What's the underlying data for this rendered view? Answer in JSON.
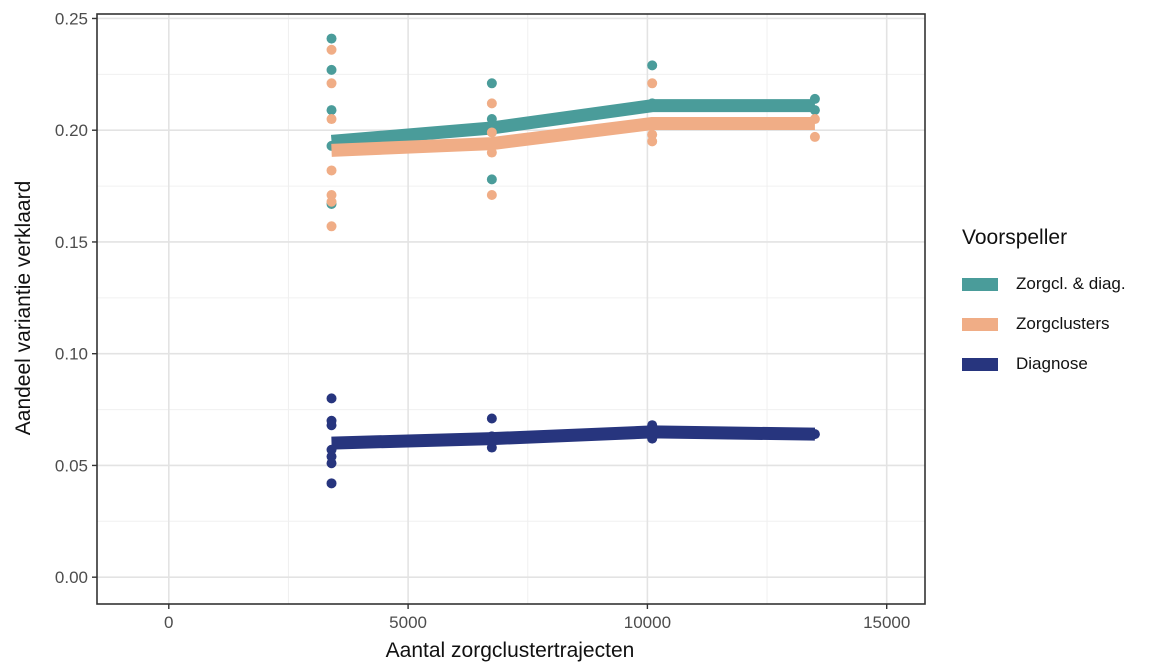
{
  "chart_data": {
    "type": "line",
    "xlabel": "Aantal zorgclustertrajecten",
    "ylabel": "Aandeel variantie verklaard",
    "xlim": [
      -1500,
      15800
    ],
    "ylim": [
      -0.012,
      0.252
    ],
    "x_ticks": [
      0,
      5000,
      10000,
      15000
    ],
    "x_tick_labels": [
      "0",
      "5000",
      "10000",
      "15000"
    ],
    "y_ticks": [
      0.0,
      0.05,
      0.1,
      0.15,
      0.2,
      0.25
    ],
    "y_tick_labels": [
      "0.00",
      "0.05",
      "0.10",
      "0.15",
      "0.20",
      "0.25"
    ],
    "grid": true,
    "legend_title": "Voorspeller",
    "legend_position": "right",
    "series": [
      {
        "name": "Zorgcl. & diag.",
        "color": "#4a9c9a",
        "line": {
          "x": [
            3400,
            6750,
            10100,
            13500
          ],
          "y": [
            0.195,
            0.201,
            0.211,
            0.211
          ]
        },
        "points": {
          "x": [
            3400,
            3400,
            3400,
            3400,
            3400,
            6750,
            6750,
            6750,
            6750,
            10100,
            10100,
            13500,
            13500
          ],
          "y": [
            0.241,
            0.227,
            0.209,
            0.193,
            0.167,
            0.221,
            0.205,
            0.202,
            0.178,
            0.229,
            0.212,
            0.214,
            0.209
          ]
        }
      },
      {
        "name": "Zorgclusters",
        "color": "#f0ad86",
        "line": {
          "x": [
            3400,
            6750,
            10100,
            13500
          ],
          "y": [
            0.191,
            0.194,
            0.203,
            0.203
          ]
        },
        "points": {
          "x": [
            3400,
            3400,
            3400,
            3400,
            3400,
            3400,
            3400,
            6750,
            6750,
            6750,
            6750,
            10100,
            10100,
            10100,
            13500,
            13500
          ],
          "y": [
            0.236,
            0.221,
            0.205,
            0.182,
            0.171,
            0.168,
            0.157,
            0.212,
            0.199,
            0.19,
            0.171,
            0.221,
            0.198,
            0.195,
            0.205,
            0.197
          ]
        }
      },
      {
        "name": "Diagnose",
        "color": "#27357e",
        "line": {
          "x": [
            3400,
            6750,
            10100,
            13500
          ],
          "y": [
            0.06,
            0.062,
            0.065,
            0.064
          ]
        },
        "points": {
          "x": [
            3400,
            3400,
            3400,
            3400,
            3400,
            3400,
            3400,
            6750,
            6750,
            6750,
            10100,
            10100,
            13500
          ],
          "y": [
            0.08,
            0.07,
            0.068,
            0.057,
            0.054,
            0.051,
            0.042,
            0.071,
            0.063,
            0.058,
            0.068,
            0.062,
            0.064
          ]
        }
      }
    ]
  }
}
